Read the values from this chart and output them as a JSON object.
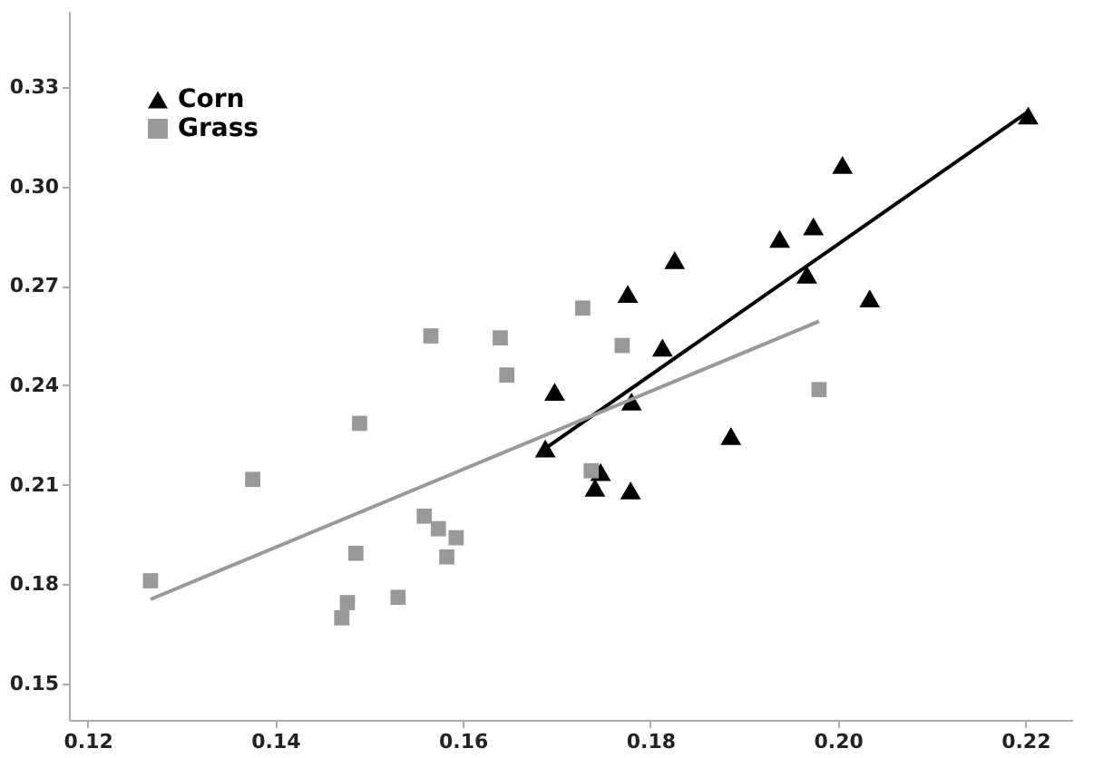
{
  "chart_data": {
    "type": "scatter",
    "xlim": [
      0.118,
      0.225
    ],
    "ylim": [
      0.139,
      0.353
    ],
    "xticks": [
      0.12,
      0.14,
      0.16,
      0.18,
      {
        "value": 0.2,
        "label": "0.20"
      },
      0.22
    ],
    "yticks": [
      0.15,
      0.18,
      0.21,
      0.24,
      0.27,
      {
        "value": 0.3,
        "label": "0.30"
      },
      0.33
    ],
    "grid": false,
    "legend": "top left",
    "series": [
      {
        "name": "Corn",
        "color": "#000000",
        "marker": "triangle",
        "x": [
          0.2203,
          0.2005,
          0.1974,
          0.1938,
          0.1826,
          0.1776,
          0.1967,
          0.2034,
          0.1813,
          0.1698,
          0.178,
          0.1688,
          0.1886,
          0.1747,
          0.1741,
          0.1779
        ],
        "values": [
          0.3214,
          0.3065,
          0.288,
          0.2842,
          0.2778,
          0.2676,
          0.2734,
          0.2662,
          0.2514,
          0.238,
          0.2351,
          0.2209,
          0.2247,
          0.2138,
          0.2091,
          0.2083
        ]
      },
      {
        "name": "Grass",
        "color": "#999999",
        "marker": "square",
        "x": [
          0.1267,
          0.1376,
          0.149,
          0.1566,
          0.164,
          0.1647,
          0.1728,
          0.177,
          0.198,
          0.1559,
          0.1574,
          0.1593,
          0.1583,
          0.1486,
          0.1531,
          0.1477,
          0.1471,
          0.1737
        ],
        "values": [
          0.181,
          0.2116,
          0.2285,
          0.2549,
          0.2543,
          0.2431,
          0.2633,
          0.252,
          0.2387,
          0.2005,
          0.1967,
          0.194,
          0.1882,
          0.1893,
          0.176,
          0.1744,
          0.1698,
          0.2142
        ]
      },
      {
        "type": "line",
        "color": "#000000",
        "x": [
          0.1688,
          0.2202
        ],
        "values": [
          0.2209,
          0.3224
        ]
      },
      {
        "type": "line",
        "color": "#999999",
        "x": [
          0.1267,
          0.198
        ],
        "values": [
          0.1754,
          0.2593
        ]
      }
    ]
  }
}
